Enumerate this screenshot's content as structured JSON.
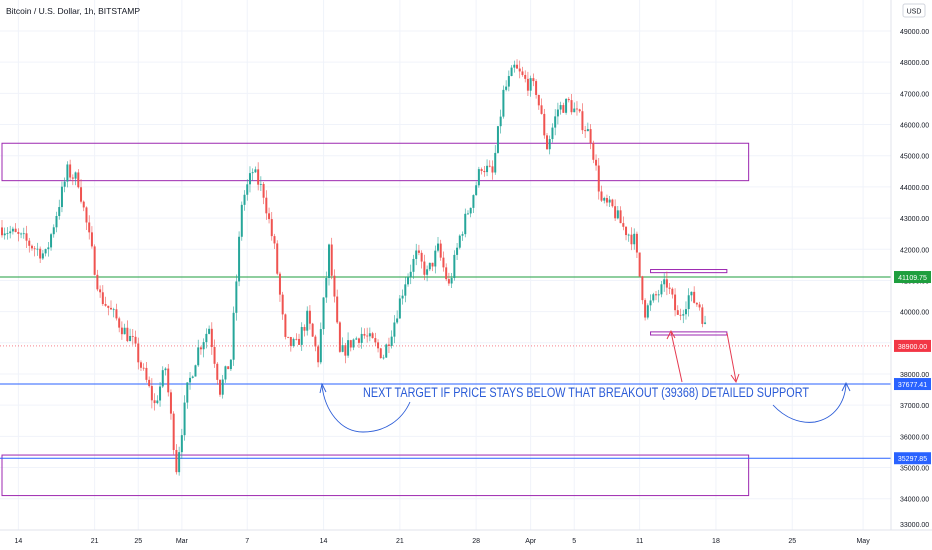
{
  "header": {
    "symbol": "Bitcoin / U.S. Dollar, 1h, BITSTAMP",
    "currency_button": "USD"
  },
  "annotation": {
    "text": "NEXT TARGET IF PRICE STAYS BELOW THAT BREAKOUT (39368) DETAILED SUPPORT",
    "color": "#2a5bd7"
  },
  "colors": {
    "up": "#26a69a",
    "down": "#ef5350",
    "box": "#9c27b0",
    "green_line": "#1e9e3e",
    "blue_line": "#2962ff",
    "current_price": "#f23645",
    "arrow": "#e53950"
  },
  "price_labels": [
    {
      "value": 41109.75,
      "text": "41109.75",
      "color": "#1e9e3e"
    },
    {
      "value": 38900.0,
      "text": "38900.00",
      "color": "#f23645"
    },
    {
      "value": 37677.41,
      "text": "37677.41",
      "color": "#2962ff"
    },
    {
      "value": 35297.85,
      "text": "35297.85",
      "color": "#2962ff"
    }
  ],
  "chart_data": {
    "type": "candlestick",
    "title": "Bitcoin / U.S. Dollar, 1h, BITSTAMP",
    "interval": "1h",
    "x_ticks": [
      "14",
      "21",
      "25",
      "Mar",
      "7",
      "14",
      "21",
      "28",
      "Apr",
      "5",
      "11",
      "18",
      "25",
      "May"
    ],
    "y_ticks": [
      34000,
      35000,
      36000,
      37000,
      38000,
      39000,
      40000,
      41000,
      42000,
      43000,
      44000,
      45000,
      46000,
      47000,
      48000,
      49000
    ],
    "y_tick_labels": [
      "34000.00",
      "35000.00",
      "36000.00",
      "37000.00",
      "38000.00",
      "39000.00",
      "40000.00",
      "41000.00",
      "42000.00",
      "43000.00",
      "44000.00",
      "45000.00",
      "46000.00",
      "47000.00",
      "48000.00",
      "49000.00"
    ],
    "y_bottom_partial_label": "33000.00",
    "ylim": [
      32800,
      49700
    ],
    "price_path_days": [
      [
        0,
        42700
      ],
      [
        2,
        42300
      ],
      [
        4,
        41800
      ],
      [
        6,
        44500
      ],
      [
        7,
        44200
      ],
      [
        9,
        40500
      ],
      [
        11,
        39500
      ],
      [
        12,
        39000
      ],
      [
        13,
        38000
      ],
      [
        14,
        37000
      ],
      [
        15,
        38200
      ],
      [
        16,
        35000
      ],
      [
        17,
        37500
      ],
      [
        18,
        38800
      ],
      [
        19,
        39500
      ],
      [
        20,
        37500
      ],
      [
        21,
        38500
      ],
      [
        22,
        43500
      ],
      [
        23,
        44500
      ],
      [
        24,
        43800
      ],
      [
        25,
        42000
      ],
      [
        26,
        39000
      ],
      [
        27,
        38900
      ],
      [
        28,
        39800
      ],
      [
        29,
        38500
      ],
      [
        30,
        42000
      ],
      [
        31,
        38600
      ],
      [
        32,
        39000
      ],
      [
        33,
        39300
      ],
      [
        34,
        39000
      ],
      [
        35,
        38600
      ],
      [
        36,
        39700
      ],
      [
        37,
        41000
      ],
      [
        38,
        41800
      ],
      [
        39,
        41200
      ],
      [
        40,
        42000
      ],
      [
        41,
        40800
      ],
      [
        42,
        42400
      ],
      [
        43,
        43500
      ],
      [
        44,
        44700
      ],
      [
        45,
        44400
      ],
      [
        46,
        47000
      ],
      [
        47,
        47800
      ],
      [
        48,
        47400
      ],
      [
        49,
        47100
      ],
      [
        50,
        45300
      ],
      [
        51,
        46500
      ],
      [
        52,
        46700
      ],
      [
        53,
        46200
      ],
      [
        54,
        45600
      ],
      [
        55,
        43500
      ],
      [
        56,
        43300
      ],
      [
        57,
        42700
      ],
      [
        58,
        42300
      ],
      [
        59,
        40000
      ],
      [
        60,
        40500
      ],
      [
        61,
        40900
      ],
      [
        62,
        39800
      ],
      [
        63,
        40500
      ],
      [
        64,
        40200
      ],
      [
        64.5,
        39500
      ]
    ],
    "horizontal_lines": [
      {
        "price": 41109.75,
        "color": "#1e9e3e",
        "style": "solid"
      },
      {
        "price": 37677.41,
        "color": "#2962ff",
        "style": "solid"
      },
      {
        "price": 35297.85,
        "color": "#2962ff",
        "style": "solid"
      },
      {
        "price": 38900.0,
        "color": "#f23645",
        "style": "dotted"
      }
    ],
    "zones": [
      {
        "top": 45400,
        "bottom": 44200,
        "x_from": 0,
        "x_to": 68.5,
        "color": "#9c27b0"
      },
      {
        "top": 35400,
        "bottom": 34100,
        "x_from": 0,
        "x_to": 68.5,
        "color": "#9c27b0"
      },
      {
        "top": 41350,
        "bottom": 41250,
        "x_from": 59.5,
        "x_to": 66.5,
        "color": "#9c27b0"
      },
      {
        "top": 39350,
        "bottom": 39250,
        "x_from": 59.5,
        "x_to": 66.5,
        "color": "#9c27b0"
      }
    ],
    "annotation_text": "NEXT TARGET IF PRICE STAYS BELOW THAT BREAKOUT (39368) DETAILED SUPPORT",
    "grid": true
  }
}
